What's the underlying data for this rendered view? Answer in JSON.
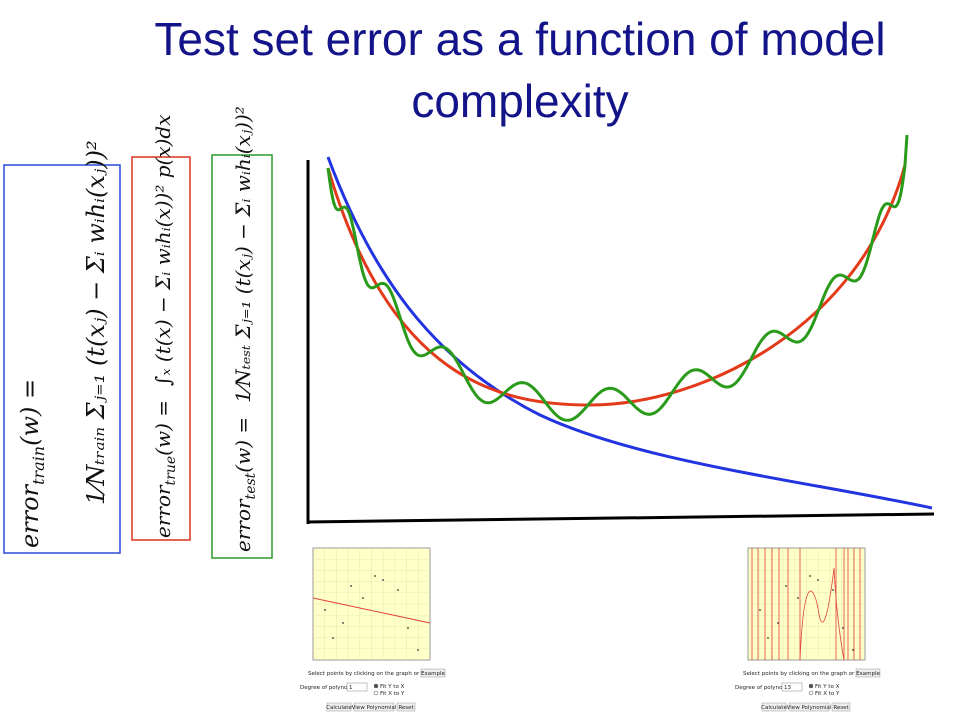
{
  "title": "Test set error as a function of model complexity",
  "formulas": [
    {
      "lhs": "error",
      "sub": "train",
      "arg": "(w) =",
      "rhs": "1⁄Nₜᵣₐᵢₙ Σⱼ₌₁ (t(xⱼ) − Σᵢ wᵢhᵢ(xⱼ))²"
    },
    {
      "lhs": "error",
      "sub": "true",
      "arg": "(w) =",
      "rhs": "∫ₓ (t(x) − Σᵢ wᵢhᵢ(x))² p(x)dx"
    },
    {
      "lhs": "error",
      "sub": "test",
      "arg": "(w) =",
      "rhs": "1⁄Nₜₑₛₜ Σⱼ₌₁ (t(xⱼ) − Σᵢ wᵢhᵢ(xⱼ))²"
    }
  ],
  "applets": [
    {
      "instruction": "Select points by clicking on the graph or press",
      "example": "Example",
      "degree_label": "Degree of polynomial:",
      "degree": "1",
      "options": [
        "Fit Y to X",
        "Fit X to Y"
      ],
      "buttons": [
        "Calculate",
        "View Polynomial",
        "Reset"
      ]
    },
    {
      "instruction": "Select points by clicking on the graph or press",
      "example": "Example",
      "degree_label": "Degree of polynomial:",
      "degree": "13",
      "options": [
        "Fit Y to X",
        "Fit X to Y"
      ],
      "buttons": [
        "Calculate",
        "View Polynomial",
        "Reset"
      ]
    }
  ]
}
